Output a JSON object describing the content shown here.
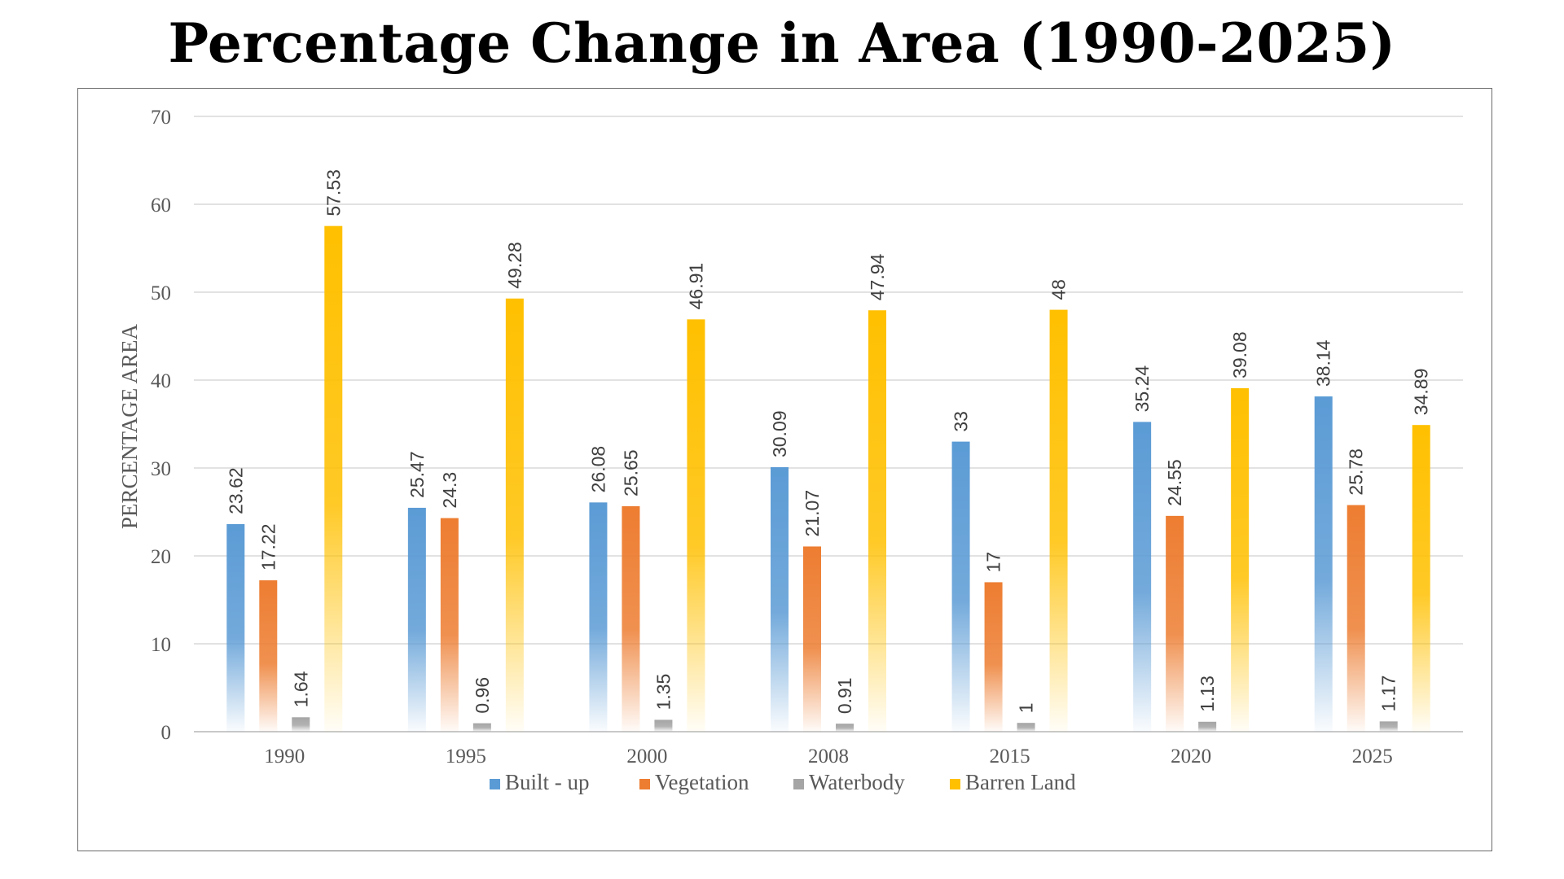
{
  "chart_data": {
    "type": "bar",
    "title": "Percentage Change in Area (1990-2025)",
    "xlabel": "",
    "ylabel": "PERCENTAGE AREA",
    "ylim": [
      0,
      70
    ],
    "yticks": [
      0,
      10,
      20,
      30,
      40,
      50,
      60,
      70
    ],
    "grid": true,
    "legend_position": "bottom",
    "categories": [
      "1990",
      "1995",
      "2000",
      "2008",
      "2015",
      "2020",
      "2025"
    ],
    "series": [
      {
        "name": "Built - up",
        "color": "#5b9bd5",
        "values": [
          23.62,
          25.47,
          26.08,
          30.09,
          33,
          35.24,
          38.14
        ],
        "labels": [
          "23.62",
          "25.47",
          "26.08",
          "30.09",
          "33",
          "35.24",
          "38.14"
        ]
      },
      {
        "name": "Vegetation",
        "color": "#ed7d31",
        "values": [
          17.22,
          24.3,
          25.65,
          21.07,
          17,
          24.55,
          25.78
        ],
        "labels": [
          "17.22",
          "24.3",
          "25.65",
          "21.07",
          "17",
          "24.55",
          "25.78"
        ]
      },
      {
        "name": "Waterbody",
        "color": "#a5a5a5",
        "values": [
          1.64,
          0.96,
          1.35,
          0.91,
          1,
          1.13,
          1.17
        ],
        "labels": [
          "1.64",
          "0.96",
          "1.35",
          "0.91",
          "1",
          "1.13",
          "1.17"
        ]
      },
      {
        "name": "Barren Land",
        "color": "#ffc000",
        "values": [
          57.53,
          49.28,
          46.91,
          47.94,
          48,
          39.08,
          34.89
        ],
        "labels": [
          "57.53",
          "49.28",
          "46.91",
          "47.94",
          "48",
          "39.08",
          "34.89"
        ]
      }
    ]
  }
}
